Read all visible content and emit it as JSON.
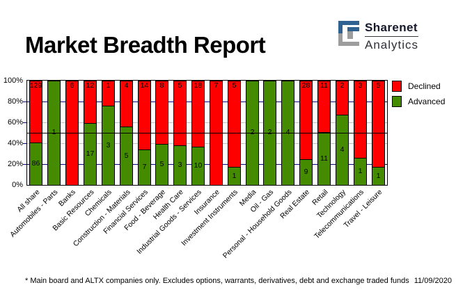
{
  "header": {
    "title": "Market Breadth Report",
    "logo": {
      "name": "Sharenet",
      "sub": "Analytics"
    }
  },
  "legend": {
    "declined_label": "Declined",
    "advanced_label": "Advanced"
  },
  "colors": {
    "declined": "#FF0000",
    "advanced": "#458B00",
    "grid_major": "#000080",
    "grid_minor": "#C0C0C0",
    "reference_line": "#000000",
    "bar_border": "#000000",
    "logo_blue": "#2F6191",
    "logo_gray": "#9D9D9D"
  },
  "footer": {
    "note": "* Main board and ALTX companies only. Excludes options, warrants, derivatives, debt and exchange traded funds",
    "date": "11/09/2020"
  },
  "chart_data": {
    "type": "bar",
    "stacked": true,
    "title": "Market Breadth Report",
    "xlabel": "",
    "ylabel": "",
    "ylim": [
      0,
      100
    ],
    "y_ticks": [
      "0%",
      "20%",
      "40%",
      "60%",
      "80%",
      "100%"
    ],
    "legend_position": "top-right",
    "note": "Bars normalized to 100%; segment heights are each count's share of total, counts shown as data labels",
    "categories": [
      "All share",
      "Automobiles - Parts",
      "Banks",
      "Basic Resources",
      "Chemicals",
      "Construction - Materials",
      "Financial Services",
      "Food - Beverage",
      "Health Care",
      "Industrial Goods - Services",
      "Insurance",
      "Investment Instruments",
      "Media",
      "Oil - Gas",
      "Personal - Household Goods",
      "Real Estate",
      "Retail",
      "Technology",
      "Telecommunications",
      "Travel - Leisure"
    ],
    "series": [
      {
        "name": "Declined",
        "color": "#FF0000",
        "values": [
          129,
          0,
          6,
          12,
          1,
          4,
          14,
          8,
          5,
          18,
          7,
          5,
          0,
          0,
          0,
          28,
          11,
          2,
          3,
          5
        ]
      },
      {
        "name": "Advanced",
        "color": "#458B00",
        "values": [
          86,
          1,
          0,
          17,
          3,
          5,
          7,
          5,
          3,
          10,
          0,
          1,
          2,
          2,
          4,
          9,
          11,
          4,
          1,
          1
        ]
      }
    ],
    "advanced_pct": [
      40.0,
      100,
      0,
      58.6,
      75.0,
      55.6,
      33.3,
      38.5,
      37.5,
      35.7,
      0,
      16.7,
      100,
      100,
      100,
      24.3,
      50.0,
      66.7,
      25.0,
      16.7
    ],
    "gridlines": [
      {
        "pct": 20,
        "color": "#000080",
        "over_bars": false
      },
      {
        "pct": 40,
        "color": "#C0C0C0",
        "over_bars": false
      },
      {
        "pct": 60,
        "color": "#C0C0C0",
        "over_bars": false
      },
      {
        "pct": 80,
        "color": "#000080",
        "over_bars": false
      },
      {
        "pct": 50,
        "color": "#000000",
        "over_bars": true
      }
    ]
  }
}
